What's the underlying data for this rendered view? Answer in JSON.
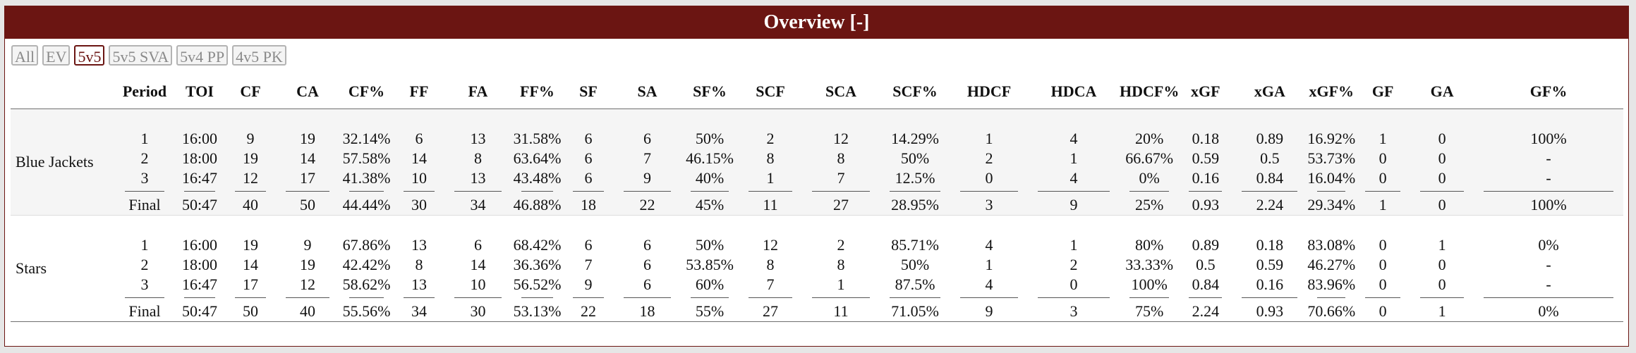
{
  "header": {
    "title": "Overview",
    "toggle": "[-]"
  },
  "filters": [
    {
      "label": "All",
      "active": false
    },
    {
      "label": "EV",
      "active": false
    },
    {
      "label": "5v5",
      "active": true
    },
    {
      "label": "5v5 SVA",
      "active": false
    },
    {
      "label": "5v4 PP",
      "active": false
    },
    {
      "label": "4v5 PK",
      "active": false
    }
  ],
  "columns": [
    "Period",
    "TOI",
    "CF",
    "CA",
    "CF%",
    "FF",
    "FA",
    "FF%",
    "SF",
    "SA",
    "SF%",
    "SCF",
    "SCA",
    "SCF%",
    "HDCF",
    "HDCA",
    "HDCF%",
    "xGF",
    "xGA",
    "xGF%",
    "GF",
    "GA",
    "GF%"
  ],
  "teams": [
    {
      "name": "Blue Jackets",
      "periods": [
        [
          "1",
          "16:00",
          "9",
          "19",
          "32.14%",
          "6",
          "13",
          "31.58%",
          "6",
          "6",
          "50%",
          "2",
          "12",
          "14.29%",
          "1",
          "4",
          "20%",
          "0.18",
          "0.89",
          "16.92%",
          "1",
          "0",
          "100%"
        ],
        [
          "2",
          "18:00",
          "19",
          "14",
          "57.58%",
          "14",
          "8",
          "63.64%",
          "6",
          "7",
          "46.15%",
          "8",
          "8",
          "50%",
          "2",
          "1",
          "66.67%",
          "0.59",
          "0.5",
          "53.73%",
          "0",
          "0",
          "-"
        ],
        [
          "3",
          "16:47",
          "12",
          "17",
          "41.38%",
          "10",
          "13",
          "43.48%",
          "6",
          "9",
          "40%",
          "1",
          "7",
          "12.5%",
          "0",
          "4",
          "0%",
          "0.16",
          "0.84",
          "16.04%",
          "0",
          "0",
          "-"
        ]
      ],
      "final": [
        "Final",
        "50:47",
        "40",
        "50",
        "44.44%",
        "30",
        "34",
        "46.88%",
        "18",
        "22",
        "45%",
        "11",
        "27",
        "28.95%",
        "3",
        "9",
        "25%",
        "0.93",
        "2.24",
        "29.34%",
        "1",
        "0",
        "100%"
      ]
    },
    {
      "name": "Stars",
      "periods": [
        [
          "1",
          "16:00",
          "19",
          "9",
          "67.86%",
          "13",
          "6",
          "68.42%",
          "6",
          "6",
          "50%",
          "12",
          "2",
          "85.71%",
          "4",
          "1",
          "80%",
          "0.89",
          "0.18",
          "83.08%",
          "0",
          "1",
          "0%"
        ],
        [
          "2",
          "18:00",
          "14",
          "19",
          "42.42%",
          "8",
          "14",
          "36.36%",
          "7",
          "6",
          "53.85%",
          "8",
          "8",
          "50%",
          "1",
          "2",
          "33.33%",
          "0.5",
          "0.59",
          "46.27%",
          "0",
          "0",
          "-"
        ],
        [
          "3",
          "16:47",
          "17",
          "12",
          "58.62%",
          "13",
          "10",
          "56.52%",
          "9",
          "6",
          "60%",
          "7",
          "1",
          "87.5%",
          "4",
          "0",
          "100%",
          "0.84",
          "0.16",
          "83.96%",
          "0",
          "0",
          "-"
        ]
      ],
      "final": [
        "Final",
        "50:47",
        "50",
        "40",
        "55.56%",
        "34",
        "30",
        "53.13%",
        "22",
        "18",
        "55%",
        "27",
        "11",
        "71.05%",
        "9",
        "3",
        "75%",
        "2.24",
        "0.93",
        "70.66%",
        "0",
        "1",
        "0%"
      ]
    }
  ],
  "colors": {
    "accent": "#6b1512",
    "header_text": "#ffffff",
    "alt_row": "#f5f5f5"
  }
}
